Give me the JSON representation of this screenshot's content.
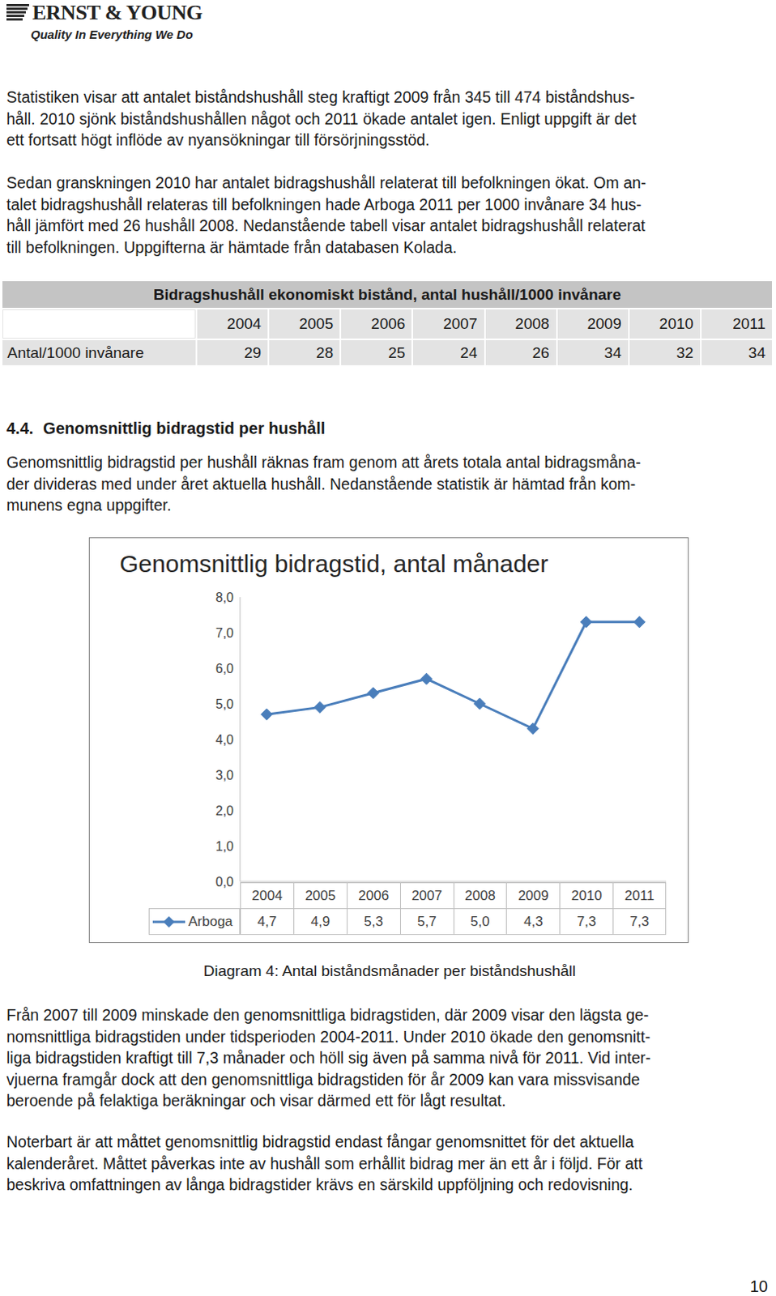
{
  "header": {
    "logo": "ERNST & YOUNG",
    "tagline": "Quality In Everything We Do"
  },
  "paragraphs_top": [
    [
      "Statistiken visar att antalet biståndshushåll steg kraftigt 2009 från 345 till 474 biståndshus-",
      "håll. 2010 sjönk biståndshushållen något och 2011 ökade antalet igen. Enligt uppgift är det",
      "ett fortsatt högt inflöde av nyansökningar till försörjningsstöd."
    ],
    [
      "Sedan granskningen 2010 har antalet bidragshushåll relaterat till befolkningen ökat. Om an-",
      "talet bidragshushåll relateras till befolkningen hade Arboga 2011 per 1000 invånare 34 hus-",
      "håll jämfört med 26 hushåll 2008. Nedanstående tabell visar antalet bidragshushåll relaterat",
      "till befolkningen. Uppgifterna är hämtade från databasen Kolada."
    ]
  ],
  "table": {
    "title": "Bidragshushåll ekonomiskt bistånd, antal hushåll/1000 invånare",
    "columns": [
      2004,
      2005,
      2006,
      2007,
      2008,
      2009,
      2010,
      2011
    ],
    "rows": [
      {
        "label": "Antal/1000 invånare",
        "values": [
          29,
          28,
          25,
          24,
          26,
          34,
          32,
          34
        ]
      }
    ]
  },
  "section": {
    "number": "4.4.",
    "title": "Genomsnittlig bidragstid per hushåll",
    "text": [
      "Genomsnittlig bidragstid per hushåll räknas fram genom att årets totala antal bidragsmåna-",
      "der divideras med under året aktuella hushåll. Nedanstående statistik är hämtad från kom-",
      "munens egna uppgifter."
    ]
  },
  "chart_data": {
    "type": "line",
    "title": "Genomsnittlig bidragstid, antal månader",
    "categories": [
      "2004",
      "2005",
      "2006",
      "2007",
      "2008",
      "2009",
      "2010",
      "2011"
    ],
    "series": [
      {
        "name": "Arboga",
        "color": "#4a7ebb",
        "marker": "diamond",
        "values": [
          4.7,
          4.9,
          5.3,
          5.7,
          5.0,
          4.3,
          7.3,
          7.3
        ],
        "value_labels": [
          "4,7",
          "4,9",
          "5,3",
          "5,7",
          "5,0",
          "4,3",
          "7,3",
          "7,3"
        ]
      }
    ],
    "ylim": [
      0,
      8
    ],
    "yticks": [
      {
        "value": 0,
        "label": "0,0"
      },
      {
        "value": 1,
        "label": "1,0"
      },
      {
        "value": 2,
        "label": "2,0"
      },
      {
        "value": 3,
        "label": "3,0"
      },
      {
        "value": 4,
        "label": "4,0"
      },
      {
        "value": 5,
        "label": "5,0"
      },
      {
        "value": 6,
        "label": "6,0"
      },
      {
        "value": 7,
        "label": "7,0"
      },
      {
        "value": 8,
        "label": "8,0"
      }
    ],
    "grid": false
  },
  "caption": "Diagram 4: Antal biståndsmånader per biståndshushåll",
  "paragraphs_bottom": [
    [
      "Från 2007 till 2009 minskade den genomsnittliga bidragstiden, där 2009 visar den lägsta ge-",
      "nomsnittliga bidragstiden under tidsperioden 2004-2011. Under 2010 ökade den genomsnitt-",
      "liga bidragstiden kraftigt till 7,3 månader och höll sig även på samma nivå för 2011. Vid inter-",
      "vjuerna framgår dock att den genomsnittliga bidragstiden för år 2009 kan vara missvisande",
      "beroende på felaktiga beräkningar och visar därmed ett för lågt resultat."
    ],
    [
      "Noterbart är att måttet genomsnittlig bidragstid endast fångar genomsnittet för det aktuella",
      "kalenderåret. Måttet påverkas inte av hushåll som erhållit bidrag mer än ett år i följd. För att",
      "beskriva omfattningen av långa bidragstider krävs en särskild uppföljning och redovisning."
    ]
  ],
  "page_number": 10
}
